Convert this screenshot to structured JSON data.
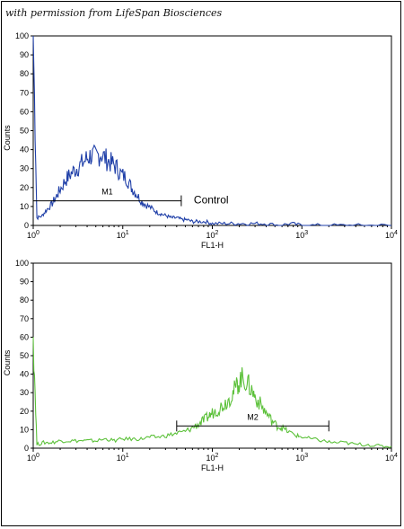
{
  "credit": "with permission from LifeSpan Biosciences",
  "chart_data": [
    {
      "type": "line",
      "xscale": "log",
      "xlim": [
        1,
        10000
      ],
      "ylim": [
        0,
        100
      ],
      "ylabel": "Counts",
      "xlabel": "FL1-H",
      "ytick_labels": [
        "0",
        "10",
        "20",
        "30",
        "40",
        "50",
        "60",
        "70",
        "80",
        "90",
        "100"
      ],
      "xticks": [
        1,
        10,
        100,
        1000,
        10000
      ],
      "xtick_bases": [
        "10",
        "10",
        "10",
        "10",
        "10"
      ],
      "xtick_exponents": [
        "0",
        "1",
        "2",
        "3",
        "4"
      ],
      "color": "#1f3fa8",
      "marker": {
        "label": "M1",
        "x_start": 1,
        "x_end": 45,
        "y": 13
      },
      "annotation": "Control",
      "series": [
        {
          "x": [
            1.0,
            1.1,
            1.25,
            1.4,
            1.6,
            1.8,
            2.0,
            2.3,
            2.6,
            3.0,
            3.4,
            3.9,
            4.4,
            5.0,
            5.7,
            6.5,
            7.4,
            8.4,
            9.6,
            11,
            12.5,
            14,
            16,
            18,
            21,
            24,
            27,
            31,
            35,
            40,
            46,
            52,
            60,
            70,
            85,
            100,
            130,
            170,
            220,
            300,
            400,
            550,
            750,
            1000,
            1500,
            2500,
            4000,
            6000,
            10000
          ],
          "y": [
            100,
            4,
            5,
            8,
            11,
            15,
            19,
            24,
            27,
            30,
            32,
            35,
            37,
            36,
            38,
            35,
            33,
            31,
            27,
            25,
            20,
            17,
            13,
            11,
            9,
            7,
            6,
            5,
            4,
            4,
            3,
            3,
            2,
            2,
            2,
            1,
            1,
            1,
            1,
            1,
            1,
            0,
            1,
            0,
            0,
            0,
            0,
            0,
            0
          ]
        }
      ]
    },
    {
      "type": "line",
      "xscale": "log",
      "xlim": [
        1,
        10000
      ],
      "ylim": [
        0,
        100
      ],
      "ylabel": "Counts",
      "xlabel": "FL1-H",
      "ytick_labels": [
        "0",
        "10",
        "20",
        "30",
        "40",
        "50",
        "60",
        "70",
        "80",
        "90",
        "100"
      ],
      "xticks": [
        1,
        10,
        100,
        1000,
        10000
      ],
      "xtick_bases": [
        "10",
        "10",
        "10",
        "10",
        "10"
      ],
      "xtick_exponents": [
        "0",
        "1",
        "2",
        "3",
        "4"
      ],
      "color": "#5cc13a",
      "marker": {
        "label": "M2",
        "x_start": 40,
        "x_end": 2000,
        "y": 12
      },
      "series": [
        {
          "x": [
            1.0,
            1.1,
            1.3,
            1.6,
            2.0,
            2.5,
            3.2,
            4.0,
            5.0,
            6.5,
            8.0,
            10,
            13,
            16,
            20,
            25,
            32,
            40,
            50,
            60,
            70,
            80,
            90,
            100,
            115,
            130,
            150,
            170,
            190,
            210,
            240,
            270,
            300,
            350,
            400,
            460,
            530,
            600,
            700,
            850,
            1000,
            1300,
            1700,
            2200,
            3000,
            4000,
            5500,
            7500,
            10000
          ],
          "y": [
            60,
            2,
            3,
            3,
            4,
            4,
            4,
            4,
            4,
            5,
            4,
            5,
            5,
            5,
            6,
            6,
            7,
            8,
            9,
            11,
            13,
            15,
            17,
            19,
            21,
            23,
            26,
            30,
            34,
            38,
            36,
            32,
            28,
            23,
            19,
            15,
            12,
            11,
            9,
            7,
            6,
            5,
            4,
            3,
            3,
            2,
            2,
            1,
            1
          ]
        }
      ]
    }
  ]
}
